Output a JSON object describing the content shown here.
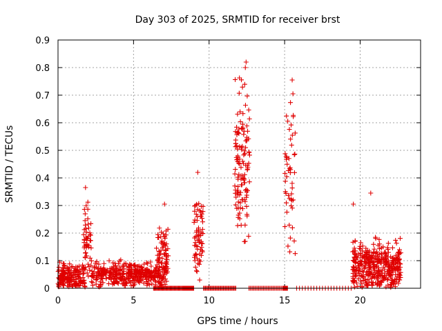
{
  "chart_data": {
    "type": "scatter",
    "title": "Day 303 of 2025, SRMTID for receiver brst",
    "xlabel": "GPS time / hours",
    "ylabel": "SRMTID / TECUs",
    "xlim": [
      0,
      24
    ],
    "ylim": [
      0,
      0.9
    ],
    "x_ticks": [
      0,
      5,
      10,
      15,
      20
    ],
    "y_ticks": [
      0,
      0.1,
      0.2,
      0.3,
      0.4,
      0.5,
      0.6,
      0.7,
      0.8,
      0.9
    ],
    "x_tick_labels": [
      "0",
      "5",
      "10",
      "15",
      "20"
    ],
    "y_tick_labels": [
      "0",
      "0.1",
      "0.2",
      "0.3",
      "0.4",
      "0.5",
      "0.6",
      "0.7",
      "0.8",
      "0.9"
    ],
    "grid": true,
    "marker": "plus",
    "color": "#e00000",
    "clusters": [
      {
        "x_range": [
          0.0,
          1.8
        ],
        "y_mean": 0.04,
        "y_spread": 0.03,
        "y_max": 0.1,
        "count": 180
      },
      {
        "x_range": [
          1.7,
          2.2
        ],
        "y_mean": 0.17,
        "y_spread": 0.09,
        "y_max": 0.37,
        "count": 55
      },
      {
        "x_range": [
          2.2,
          7.2
        ],
        "y_mean": 0.05,
        "y_spread": 0.03,
        "y_max": 0.14,
        "count": 420
      },
      {
        "x_range": [
          6.5,
          7.3
        ],
        "y_mean": 0.13,
        "y_spread": 0.07,
        "y_max": 0.31,
        "count": 70
      },
      {
        "x_range": [
          9.0,
          9.6
        ],
        "y_mean": 0.18,
        "y_spread": 0.09,
        "y_max": 0.42,
        "count": 70
      },
      {
        "x_range": [
          11.7,
          12.7
        ],
        "y_mean": 0.45,
        "y_spread": 0.18,
        "y_max": 0.82,
        "count": 130
      },
      {
        "x_range": [
          15.0,
          15.7
        ],
        "y_mean": 0.4,
        "y_spread": 0.18,
        "y_max": 0.75,
        "count": 50
      },
      {
        "x_range": [
          19.5,
          22.7
        ],
        "y_mean": 0.08,
        "y_spread": 0.06,
        "y_max": 0.34,
        "count": 420
      }
    ],
    "peaks": [
      {
        "x": 1.82,
        "y": 0.365
      },
      {
        "x": 7.05,
        "y": 0.305
      },
      {
        "x": 9.25,
        "y": 0.42
      },
      {
        "x": 12.45,
        "y": 0.82
      },
      {
        "x": 12.4,
        "y": 0.8
      },
      {
        "x": 15.5,
        "y": 0.755
      },
      {
        "x": 15.55,
        "y": 0.705
      },
      {
        "x": 20.7,
        "y": 0.345
      },
      {
        "x": 19.55,
        "y": 0.305
      }
    ],
    "zero_runs": [
      {
        "x_range": [
          6.3,
          8.3
        ],
        "count": 40
      },
      {
        "x_range": [
          8.3,
          9.0
        ],
        "count": 20
      },
      {
        "x_range": [
          9.6,
          11.8
        ],
        "count": 35
      },
      {
        "x_range": [
          12.6,
          15.0
        ],
        "count": 30
      },
      {
        "x_range": [
          14.9,
          15.2
        ],
        "count": 15
      },
      {
        "x_range": [
          15.7,
          19.5
        ],
        "count": 20
      }
    ]
  }
}
